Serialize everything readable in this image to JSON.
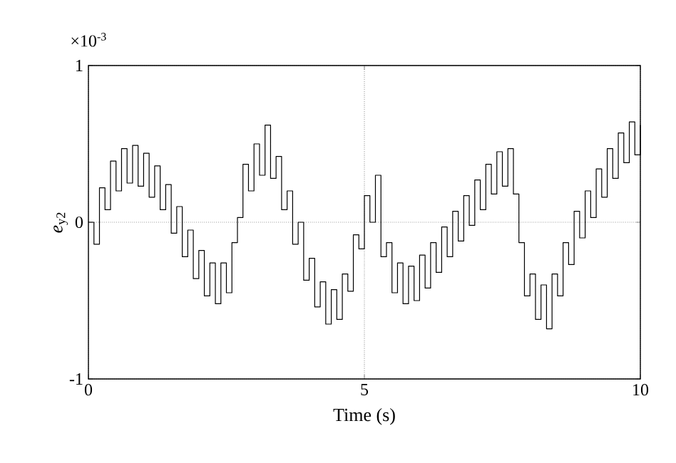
{
  "chart_data": {
    "type": "step",
    "xlabel": "Time (s)",
    "ylabel": "*e*$_{y2}$",
    "annotations": [
      "×10$^{-3}$"
    ],
    "xlim": [
      0,
      10
    ],
    "xticks": [
      0,
      5,
      10
    ],
    "ylim": [
      -1,
      1
    ],
    "yticks": [
      -1,
      0,
      1
    ],
    "grid": true,
    "x": [
      0.0,
      0.1,
      0.2,
      0.3,
      0.4,
      0.5,
      0.6,
      0.7,
      0.8,
      0.9,
      1.0,
      1.1,
      1.2,
      1.3,
      1.4,
      1.5,
      1.6,
      1.7,
      1.8,
      1.9,
      2.0,
      2.1,
      2.2,
      2.3,
      2.4,
      2.5,
      2.6,
      2.7,
      2.8,
      2.9,
      3.0,
      3.1,
      3.2,
      3.3,
      3.4,
      3.5,
      3.6,
      3.7,
      3.8,
      3.9,
      4.0,
      4.1,
      4.2,
      4.3,
      4.4,
      4.5,
      4.6,
      4.7,
      4.8,
      4.9,
      5.0,
      5.1,
      5.2,
      5.3,
      5.4,
      5.5,
      5.6,
      5.7,
      5.8,
      5.9,
      6.0,
      6.1,
      6.2,
      6.3,
      6.4,
      6.5,
      6.6,
      6.7,
      6.8,
      6.9,
      7.0,
      7.1,
      7.2,
      7.3,
      7.4,
      7.5,
      7.6,
      7.7,
      7.8,
      7.9,
      8.0,
      8.1,
      8.2,
      8.3,
      8.4,
      8.5,
      8.6,
      8.7,
      8.8,
      8.9,
      9.0,
      9.1,
      9.2,
      9.3,
      9.4,
      9.5,
      9.6,
      9.7,
      9.8,
      9.9,
      10.0
    ],
    "series": [
      {
        "color": "#000000",
        "line_style": "solid",
        "values": [
          0.0,
          -0.14,
          0.22,
          0.08,
          0.39,
          0.2,
          0.47,
          0.25,
          0.49,
          0.23,
          0.44,
          0.16,
          0.36,
          0.08,
          0.24,
          -0.07,
          0.1,
          -0.22,
          -0.05,
          -0.36,
          -0.18,
          -0.47,
          -0.26,
          -0.52,
          -0.26,
          -0.45,
          -0.13,
          0.03,
          0.37,
          0.2,
          0.5,
          0.3,
          0.62,
          0.28,
          0.42,
          0.08,
          0.2,
          -0.14,
          0.0,
          -0.37,
          -0.23,
          -0.54,
          -0.38,
          -0.65,
          -0.43,
          -0.62,
          -0.33,
          -0.44,
          -0.08,
          -0.17,
          0.17,
          0.0,
          0.3,
          -0.22,
          -0.13,
          -0.45,
          -0.26,
          -0.52,
          -0.28,
          -0.5,
          -0.21,
          -0.42,
          -0.13,
          -0.32,
          -0.03,
          -0.22,
          0.07,
          -0.12,
          0.17,
          -0.02,
          0.27,
          0.08,
          0.37,
          0.18,
          0.45,
          0.23,
          0.47,
          0.18,
          -0.13,
          -0.47,
          -0.33,
          -0.62,
          -0.4,
          -0.68,
          -0.33,
          -0.47,
          -0.13,
          -0.27,
          0.07,
          -0.1,
          0.2,
          0.03,
          0.34,
          0.16,
          0.47,
          0.28,
          0.57,
          0.38,
          0.64,
          0.43,
          0.62
        ]
      }
    ]
  }
}
